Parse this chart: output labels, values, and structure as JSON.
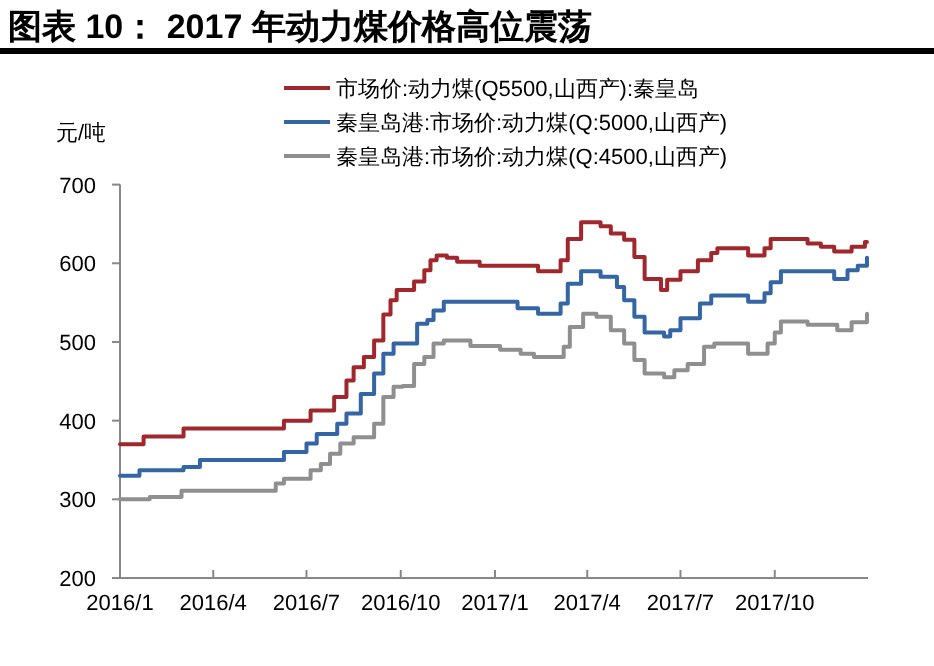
{
  "chart_data": {
    "type": "step",
    "title": "图表 10： 2017 年动力煤价格高位震荡",
    "ylabel": "元/吨",
    "xlim": [
      "2016-01-01",
      "2017-12-31"
    ],
    "xticks": [
      {
        "value": "2016-01-01",
        "label": "2016/1"
      },
      {
        "value": "2016-04-01",
        "label": "2016/4"
      },
      {
        "value": "2016-07-01",
        "label": "2016/7"
      },
      {
        "value": "2016-10-01",
        "label": "2016/10"
      },
      {
        "value": "2017-01-01",
        "label": "2017/1"
      },
      {
        "value": "2017-04-01",
        "label": "2017/4"
      },
      {
        "value": "2017-07-01",
        "label": "2017/7"
      },
      {
        "value": "2017-10-01",
        "label": "2017/10"
      }
    ],
    "ylim": [
      200,
      700
    ],
    "yticks": [
      200,
      300,
      400,
      500,
      600,
      700
    ],
    "grid": false,
    "legend": "top",
    "line_style": "solid",
    "marker": "none",
    "series": [
      {
        "name": "市场价:动力煤(Q5500,山西产):秦皇岛",
        "color": "#a0282c",
        "x": [
          "2016-01-01",
          "2016-01-24",
          "2016-03-03",
          "2016-06-09",
          "2016-07-05",
          "2016-07-28",
          "2016-08-09",
          "2016-08-16",
          "2016-08-26",
          "2016-09-05",
          "2016-09-14",
          "2016-09-21",
          "2016-09-27",
          "2016-10-14",
          "2016-10-24",
          "2016-10-30",
          "2016-11-05",
          "2016-11-15",
          "2016-11-25",
          "2016-12-17",
          "2017-02-12",
          "2017-03-06",
          "2017-03-13",
          "2017-03-26",
          "2017-04-14",
          "2017-04-24",
          "2017-05-07",
          "2017-05-17",
          "2017-05-27",
          "2017-06-12",
          "2017-06-18",
          "2017-07-01",
          "2017-07-18",
          "2017-07-31",
          "2017-08-06",
          "2017-09-05",
          "2017-09-21",
          "2017-09-27",
          "2017-11-02",
          "2017-11-15",
          "2017-11-28",
          "2017-12-15",
          "2017-12-28",
          "2017-12-30"
        ],
        "values": [
          370,
          380,
          390,
          400,
          413,
          430,
          451,
          468,
          481,
          502,
          535,
          553,
          566,
          577,
          591,
          604,
          610,
          607,
          602,
          597,
          590,
          604,
          631,
          652,
          647,
          638,
          630,
          608,
          580,
          566,
          579,
          590,
          604,
          613,
          619,
          610,
          619,
          631,
          625,
          621,
          615,
          621,
          627,
          627
        ]
      },
      {
        "name": "秦皇岛港:市场价:动力煤(Q:5000,山西产)",
        "color": "#3465a4",
        "x": [
          "2016-01-01",
          "2016-01-20",
          "2016-03-03",
          "2016-03-19",
          "2016-06-09",
          "2016-07-01",
          "2016-07-11",
          "2016-07-31",
          "2016-08-09",
          "2016-08-23",
          "2016-09-05",
          "2016-09-14",
          "2016-09-24",
          "2016-10-17",
          "2016-10-27",
          "2016-11-02",
          "2016-11-12",
          "2017-01-23",
          "2017-02-12",
          "2017-03-06",
          "2017-03-13",
          "2017-03-26",
          "2017-04-14",
          "2017-04-30",
          "2017-05-07",
          "2017-05-17",
          "2017-05-27",
          "2017-06-15",
          "2017-06-21",
          "2017-07-01",
          "2017-07-20",
          "2017-07-31",
          "2017-09-05",
          "2017-09-21",
          "2017-09-27",
          "2017-10-07",
          "2017-11-28",
          "2017-12-11",
          "2017-12-21",
          "2017-12-30"
        ],
        "values": [
          330,
          337,
          341,
          350,
          360,
          371,
          383,
          396,
          409,
          434,
          460,
          485,
          498,
          523,
          528,
          540,
          551,
          543,
          536,
          549,
          574,
          590,
          583,
          570,
          553,
          532,
          512,
          507,
          515,
          530,
          549,
          559,
          551,
          562,
          576,
          590,
          580,
          591,
          597,
          607
        ]
      },
      {
        "name": "秦皇岛港:市场价:动力煤(Q:4500,山西产)",
        "color": "#8f8f8f",
        "x": [
          "2016-01-01",
          "2016-01-30",
          "2016-03-01",
          "2016-06-01",
          "2016-06-09",
          "2016-07-05",
          "2016-07-15",
          "2016-07-24",
          "2016-08-03",
          "2016-08-16",
          "2016-09-05",
          "2016-09-14",
          "2016-09-24",
          "2016-10-03",
          "2016-10-14",
          "2016-10-24",
          "2016-11-02",
          "2016-11-12",
          "2016-12-08",
          "2017-01-06",
          "2017-01-26",
          "2017-02-08",
          "2017-03-09",
          "2017-03-15",
          "2017-03-28",
          "2017-04-10",
          "2017-04-24",
          "2017-05-07",
          "2017-05-17",
          "2017-05-27",
          "2017-06-15",
          "2017-06-25",
          "2017-07-08",
          "2017-07-24",
          "2017-08-03",
          "2017-09-05",
          "2017-09-24",
          "2017-10-01",
          "2017-10-07",
          "2017-11-02",
          "2017-12-01",
          "2017-12-15",
          "2017-12-30"
        ],
        "values": [
          300,
          303,
          311,
          320,
          326,
          337,
          345,
          358,
          371,
          379,
          396,
          430,
          443,
          444,
          472,
          481,
          498,
          502,
          495,
          490,
          485,
          481,
          494,
          519,
          536,
          532,
          515,
          498,
          477,
          460,
          455,
          464,
          472,
          494,
          498,
          485,
          498,
          512,
          526,
          522,
          515,
          525,
          536
        ]
      }
    ]
  }
}
